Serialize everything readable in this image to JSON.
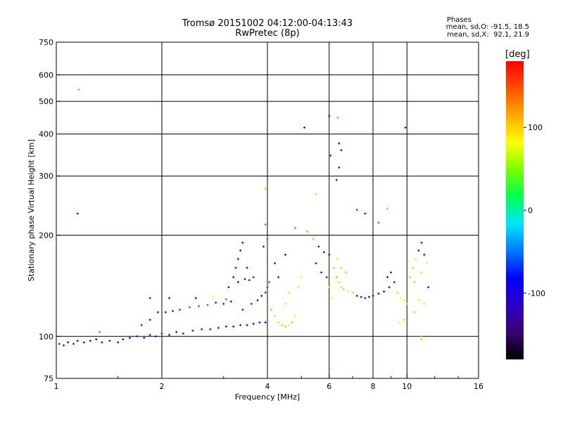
{
  "header": {
    "title_line1": "Tromsø 20151002 04:12:00-04:13:43",
    "title_line2": "RwPretec (8p)",
    "phases_label": "Phases",
    "stats_o": "mean, sd,O: -91.5, 18.5",
    "stats_x": "mean, sd,X:  92.1, 21.9"
  },
  "colorbar": {
    "unit": "[deg]",
    "ticks": [
      "100",
      "0",
      "-100"
    ],
    "tick_values": [
      100,
      0,
      -100
    ],
    "range": [
      -180,
      180
    ],
    "colors": [
      "#000000",
      "#3b0073",
      "#2d00c8",
      "#0000ff",
      "#0078ff",
      "#00e6ff",
      "#00ff50",
      "#78ff00",
      "#ffff00",
      "#ffaa00",
      "#ff5000",
      "#ff0000"
    ]
  },
  "chart_data": {
    "type": "scatter",
    "title": "Tromsø 20151002 04:12:00-04:13:43",
    "subtitle": "RwPretec (8p)",
    "xlabel": "Frequency [MHz]",
    "ylabel": "Stationary phase Virtual Height [km]",
    "xscale": "log",
    "yscale": "log",
    "xlim": [
      1,
      16
    ],
    "ylim": [
      75,
      750
    ],
    "xticks": [
      1,
      2,
      4,
      6,
      8,
      10,
      16
    ],
    "xtick_labels": [
      "1",
      "2",
      "4",
      "6",
      "8",
      "10",
      "16"
    ],
    "yticks": [
      75,
      100,
      200,
      300,
      400,
      500,
      600,
      750
    ],
    "ytick_labels": [
      "75",
      "100",
      "200",
      "300",
      "400",
      "500",
      "600",
      "750"
    ],
    "grid": true,
    "color_value": "phase [deg]",
    "points": [
      {
        "x": 1.02,
        "y": 95,
        "c": -105
      },
      {
        "x": 1.05,
        "y": 94,
        "c": -110
      },
      {
        "x": 1.08,
        "y": 96,
        "c": -100
      },
      {
        "x": 1.12,
        "y": 95,
        "c": -112
      },
      {
        "x": 1.15,
        "y": 97,
        "c": -98
      },
      {
        "x": 1.2,
        "y": 96,
        "c": -105
      },
      {
        "x": 1.25,
        "y": 97,
        "c": -102
      },
      {
        "x": 1.3,
        "y": 98,
        "c": -108
      },
      {
        "x": 1.35,
        "y": 96,
        "c": -100
      },
      {
        "x": 1.42,
        "y": 97,
        "c": -110
      },
      {
        "x": 1.5,
        "y": 96,
        "c": -95
      },
      {
        "x": 1.55,
        "y": 98,
        "c": -103
      },
      {
        "x": 1.62,
        "y": 99,
        "c": -100
      },
      {
        "x": 1.7,
        "y": 100,
        "c": -108
      },
      {
        "x": 1.78,
        "y": 99,
        "c": -96
      },
      {
        "x": 1.85,
        "y": 101,
        "c": -112
      },
      {
        "x": 1.92,
        "y": 100,
        "c": -100
      },
      {
        "x": 2.0,
        "y": 102,
        "c": -105
      },
      {
        "x": 2.1,
        "y": 101,
        "c": -98
      },
      {
        "x": 2.2,
        "y": 103,
        "c": -110
      },
      {
        "x": 2.3,
        "y": 102,
        "c": -100
      },
      {
        "x": 2.45,
        "y": 104,
        "c": -95
      },
      {
        "x": 2.6,
        "y": 105,
        "c": -108
      },
      {
        "x": 2.75,
        "y": 105,
        "c": -100
      },
      {
        "x": 2.9,
        "y": 106,
        "c": -90
      },
      {
        "x": 3.05,
        "y": 107,
        "c": -104
      },
      {
        "x": 3.2,
        "y": 107,
        "c": -98
      },
      {
        "x": 3.35,
        "y": 108,
        "c": -110
      },
      {
        "x": 3.5,
        "y": 108,
        "c": -100
      },
      {
        "x": 3.65,
        "y": 109,
        "c": -95
      },
      {
        "x": 3.8,
        "y": 110,
        "c": -105
      },
      {
        "x": 3.95,
        "y": 110,
        "c": -85
      },
      {
        "x": 1.75,
        "y": 108,
        "c": -100
      },
      {
        "x": 1.85,
        "y": 112,
        "c": -98
      },
      {
        "x": 1.95,
        "y": 118,
        "c": -105
      },
      {
        "x": 2.05,
        "y": 118,
        "c": -100
      },
      {
        "x": 2.15,
        "y": 119,
        "c": -110
      },
      {
        "x": 2.25,
        "y": 120,
        "c": -60
      },
      {
        "x": 2.4,
        "y": 122,
        "c": -50
      },
      {
        "x": 2.55,
        "y": 123,
        "c": -55
      },
      {
        "x": 2.7,
        "y": 124,
        "c": -45
      },
      {
        "x": 2.85,
        "y": 126,
        "c": -95
      },
      {
        "x": 3.0,
        "y": 125,
        "c": -100
      },
      {
        "x": 3.15,
        "y": 127,
        "c": -90
      },
      {
        "x": 1.85,
        "y": 130,
        "c": -105
      },
      {
        "x": 2.1,
        "y": 130,
        "c": -100
      },
      {
        "x": 2.5,
        "y": 130,
        "c": -95
      },
      {
        "x": 2.8,
        "y": 131,
        "c": 80
      },
      {
        "x": 3.05,
        "y": 129,
        "c": -40
      },
      {
        "x": 3.1,
        "y": 140,
        "c": -105
      },
      {
        "x": 3.2,
        "y": 150,
        "c": -100
      },
      {
        "x": 3.25,
        "y": 160,
        "c": -110
      },
      {
        "x": 3.3,
        "y": 170,
        "c": -95
      },
      {
        "x": 3.35,
        "y": 180,
        "c": -100
      },
      {
        "x": 3.4,
        "y": 190,
        "c": -105
      },
      {
        "x": 3.3,
        "y": 145,
        "c": -100
      },
      {
        "x": 3.45,
        "y": 148,
        "c": -110
      },
      {
        "x": 3.55,
        "y": 147,
        "c": -98
      },
      {
        "x": 3.65,
        "y": 150,
        "c": -104
      },
      {
        "x": 3.5,
        "y": 160,
        "c": -96
      },
      {
        "x": 3.4,
        "y": 120,
        "c": -100
      },
      {
        "x": 3.6,
        "y": 125,
        "c": -108
      },
      {
        "x": 3.75,
        "y": 128,
        "c": -100
      },
      {
        "x": 3.85,
        "y": 132,
        "c": -95
      },
      {
        "x": 3.95,
        "y": 135,
        "c": -70
      },
      {
        "x": 4.0,
        "y": 140,
        "c": -60
      },
      {
        "x": 4.05,
        "y": 145,
        "c": -50
      },
      {
        "x": 4.0,
        "y": 195,
        "c": -50
      },
      {
        "x": 3.95,
        "y": 215,
        "c": -40
      },
      {
        "x": 3.9,
        "y": 185,
        "c": -100
      },
      {
        "x": 4.1,
        "y": 120,
        "c": 40
      },
      {
        "x": 4.2,
        "y": 115,
        "c": 70
      },
      {
        "x": 4.3,
        "y": 110,
        "c": 95
      },
      {
        "x": 4.4,
        "y": 108,
        "c": 100
      },
      {
        "x": 4.5,
        "y": 107,
        "c": 105
      },
      {
        "x": 4.6,
        "y": 108,
        "c": 90
      },
      {
        "x": 4.7,
        "y": 110,
        "c": 110
      },
      {
        "x": 4.8,
        "y": 115,
        "c": 85
      },
      {
        "x": 4.5,
        "y": 125,
        "c": 70
      },
      {
        "x": 4.6,
        "y": 135,
        "c": 100
      },
      {
        "x": 4.9,
        "y": 140,
        "c": 95
      },
      {
        "x": 5.0,
        "y": 150,
        "c": 80
      },
      {
        "x": 4.3,
        "y": 150,
        "c": -95
      },
      {
        "x": 4.2,
        "y": 165,
        "c": -100
      },
      {
        "x": 4.5,
        "y": 175,
        "c": -90
      },
      {
        "x": 4.8,
        "y": 210,
        "c": 140
      },
      {
        "x": 5.2,
        "y": 205,
        "c": 120
      },
      {
        "x": 5.4,
        "y": 195,
        "c": 110
      },
      {
        "x": 5.6,
        "y": 185,
        "c": -80
      },
      {
        "x": 5.8,
        "y": 178,
        "c": -100
      },
      {
        "x": 6.0,
        "y": 175,
        "c": -105
      },
      {
        "x": 5.5,
        "y": 165,
        "c": -100
      },
      {
        "x": 5.7,
        "y": 155,
        "c": -95
      },
      {
        "x": 5.9,
        "y": 150,
        "c": -100
      },
      {
        "x": 6.0,
        "y": 140,
        "c": 100
      },
      {
        "x": 6.1,
        "y": 130,
        "c": 90
      },
      {
        "x": 6.2,
        "y": 160,
        "c": 110
      },
      {
        "x": 6.3,
        "y": 150,
        "c": 120
      },
      {
        "x": 6.4,
        "y": 145,
        "c": 100
      },
      {
        "x": 6.5,
        "y": 140,
        "c": 95
      },
      {
        "x": 6.6,
        "y": 138,
        "c": 110
      },
      {
        "x": 6.8,
        "y": 136,
        "c": 90
      },
      {
        "x": 7.0,
        "y": 135,
        "c": 100
      },
      {
        "x": 6.3,
        "y": 170,
        "c": 80
      },
      {
        "x": 6.5,
        "y": 160,
        "c": 100
      },
      {
        "x": 6.7,
        "y": 155,
        "c": 105
      },
      {
        "x": 7.2,
        "y": 132,
        "c": -100
      },
      {
        "x": 7.4,
        "y": 131,
        "c": -105
      },
      {
        "x": 7.6,
        "y": 130,
        "c": -100
      },
      {
        "x": 7.8,
        "y": 131,
        "c": -98
      },
      {
        "x": 8.0,
        "y": 132,
        "c": -104
      },
      {
        "x": 8.3,
        "y": 134,
        "c": -100
      },
      {
        "x": 8.6,
        "y": 136,
        "c": -95
      },
      {
        "x": 8.9,
        "y": 140,
        "c": -100
      },
      {
        "x": 9.2,
        "y": 145,
        "c": -100
      },
      {
        "x": 8.8,
        "y": 150,
        "c": -96
      },
      {
        "x": 9.0,
        "y": 155,
        "c": -102
      },
      {
        "x": 9.4,
        "y": 135,
        "c": 60
      },
      {
        "x": 9.6,
        "y": 130,
        "c": 80
      },
      {
        "x": 9.8,
        "y": 128,
        "c": 90
      },
      {
        "x": 10.0,
        "y": 125,
        "c": 100
      },
      {
        "x": 10.2,
        "y": 150,
        "c": 110
      },
      {
        "x": 10.4,
        "y": 160,
        "c": 105
      },
      {
        "x": 10.6,
        "y": 170,
        "c": 95
      },
      {
        "x": 10.8,
        "y": 180,
        "c": -100
      },
      {
        "x": 11.0,
        "y": 190,
        "c": -105
      },
      {
        "x": 11.2,
        "y": 175,
        "c": -100
      },
      {
        "x": 11.4,
        "y": 165,
        "c": 90
      },
      {
        "x": 11.0,
        "y": 155,
        "c": 100
      },
      {
        "x": 10.5,
        "y": 145,
        "c": 110
      },
      {
        "x": 11.5,
        "y": 140,
        "c": -95
      },
      {
        "x": 10.8,
        "y": 128,
        "c": 95
      },
      {
        "x": 11.2,
        "y": 125,
        "c": 100
      },
      {
        "x": 9.5,
        "y": 110,
        "c": 80
      },
      {
        "x": 9.8,
        "y": 112,
        "c": 100
      },
      {
        "x": 10.5,
        "y": 118,
        "c": 110
      },
      {
        "x": 10.0,
        "y": 95,
        "c": 140
      },
      {
        "x": 11.0,
        "y": 100,
        "c": 120
      },
      {
        "x": 1.16,
        "y": 542,
        "c": 130
      },
      {
        "x": 1.15,
        "y": 232,
        "c": -100
      },
      {
        "x": 1.33,
        "y": 103,
        "c": 150
      },
      {
        "x": 5.1,
        "y": 418,
        "c": -110
      },
      {
        "x": 6.0,
        "y": 452,
        "c": -105
      },
      {
        "x": 6.35,
        "y": 447,
        "c": 130
      },
      {
        "x": 6.4,
        "y": 375,
        "c": -100
      },
      {
        "x": 6.5,
        "y": 358,
        "c": -110
      },
      {
        "x": 6.05,
        "y": 345,
        "c": -100
      },
      {
        "x": 6.4,
        "y": 318,
        "c": -100
      },
      {
        "x": 6.3,
        "y": 292,
        "c": -110
      },
      {
        "x": 9.9,
        "y": 418,
        "c": -105
      },
      {
        "x": 3.95,
        "y": 275,
        "c": 110
      },
      {
        "x": 5.5,
        "y": 265,
        "c": 100
      },
      {
        "x": 7.2,
        "y": 238,
        "c": -60
      },
      {
        "x": 7.6,
        "y": 232,
        "c": -90
      },
      {
        "x": 8.8,
        "y": 240,
        "c": 120
      },
      {
        "x": 8.3,
        "y": 218,
        "c": 150
      },
      {
        "x": 6.0,
        "y": 80,
        "c": -40
      },
      {
        "x": 11.0,
        "y": 98,
        "c": 110
      }
    ]
  }
}
